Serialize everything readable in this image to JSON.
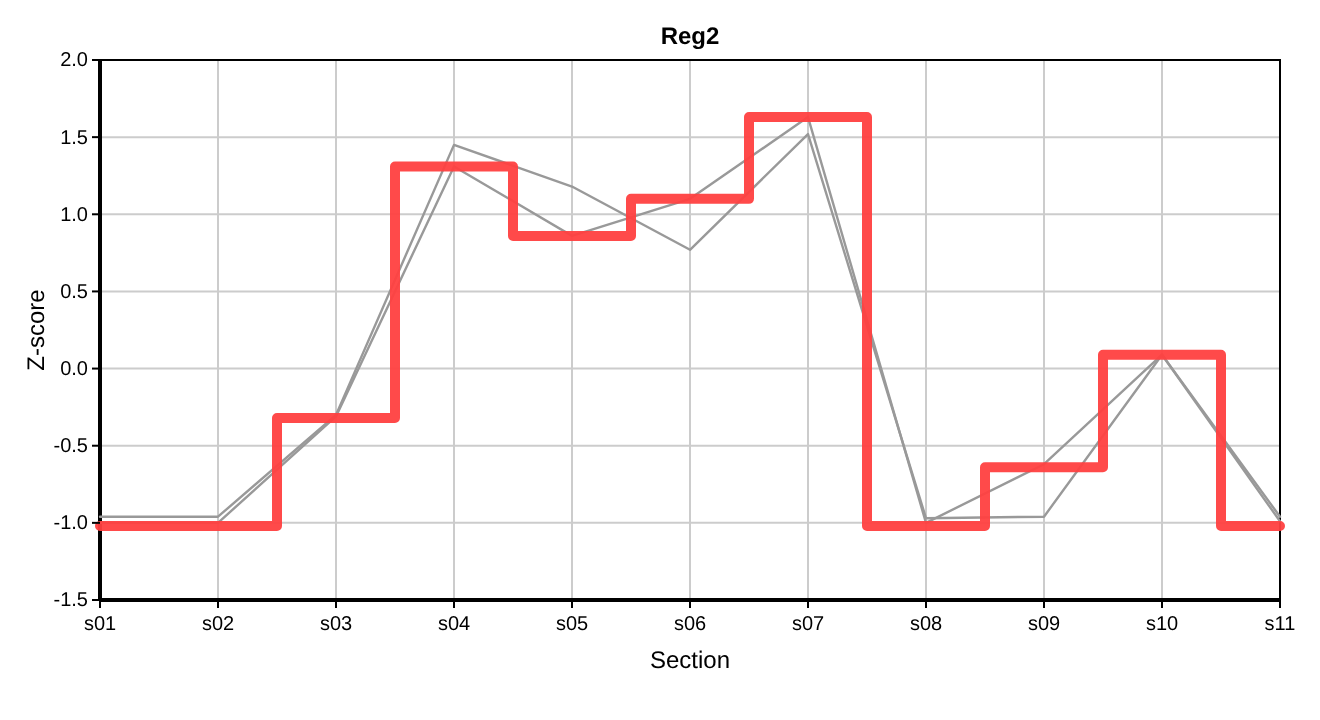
{
  "chart_data": {
    "type": "line",
    "title": "Reg2",
    "xlabel": "Section",
    "ylabel": "Z-score",
    "categories": [
      "s01",
      "s02",
      "s03",
      "s04",
      "s05",
      "s06",
      "s07",
      "s08",
      "s09",
      "s10",
      "s11"
    ],
    "ylim": [
      -1.5,
      2.0
    ],
    "yticks": [
      {
        "value": -1.5,
        "label": "-1.5"
      },
      {
        "value": -1,
        "label": "-1.0"
      },
      {
        "value": -0.5,
        "label": "-0.5"
      },
      {
        "value": 0,
        "label": "0.0"
      },
      {
        "value": 0.5,
        "label": "0.5"
      },
      {
        "value": 1,
        "label": "1.0"
      },
      {
        "value": 1.5,
        "label": "1.5"
      },
      {
        "value": 2,
        "label": "2.0"
      }
    ],
    "grid": true,
    "marker": "none",
    "line_style": "solid",
    "series": [
      {
        "color": "#999999",
        "values": [
          -0.96,
          -0.96,
          -0.3,
          1.45,
          1.18,
          0.77,
          1.52,
          -0.97,
          -0.96,
          0.09,
          -0.96
        ]
      },
      {
        "color": "#999999",
        "values": [
          -1.0,
          -1.0,
          -0.31,
          1.31,
          0.86,
          1.1,
          1.63,
          -1.0,
          -0.62,
          0.09,
          -0.99
        ]
      },
      {
        "type": "step",
        "color": "#ff4040",
        "values": [
          -1.02,
          -1.02,
          -0.32,
          1.31,
          0.86,
          1.1,
          1.63,
          -1.02,
          -0.64,
          0.09,
          -1.02
        ]
      }
    ]
  }
}
